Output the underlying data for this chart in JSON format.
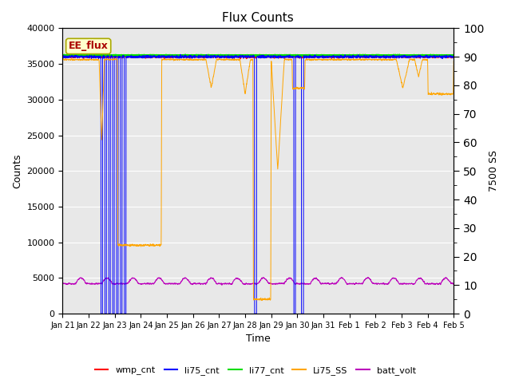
{
  "title": "Flux Counts",
  "xlabel": "Time",
  "ylabel_left": "Counts",
  "ylabel_right": "7500 SS",
  "annotation": "EE_flux",
  "ylim_left": [
    0,
    40000
  ],
  "ylim_right": [
    0,
    100
  ],
  "x_tick_labels": [
    "Jan 21",
    "Jan 22",
    "Jan 23",
    "Jan 24",
    "Jan 25",
    "Jan 26",
    "Jan 27",
    "Jan 28",
    "Jan 29",
    "Jan 30",
    "Jan 31",
    "Feb 1",
    "Feb 2",
    "Feb 3",
    "Feb 4",
    "Feb 5"
  ],
  "colors": {
    "wmp_cnt": "#ff0000",
    "li75_cnt": "#0000ff",
    "li77_cnt": "#00dd00",
    "Li75_SS": "#ffa500",
    "batt_volt": "#bb00bb"
  },
  "background_color": "#e8e8e8",
  "grid_color": "#ffffff",
  "annotation_color": "#aa0000",
  "annotation_bg": "#ffffcc",
  "annotation_edge": "#aaaa00"
}
